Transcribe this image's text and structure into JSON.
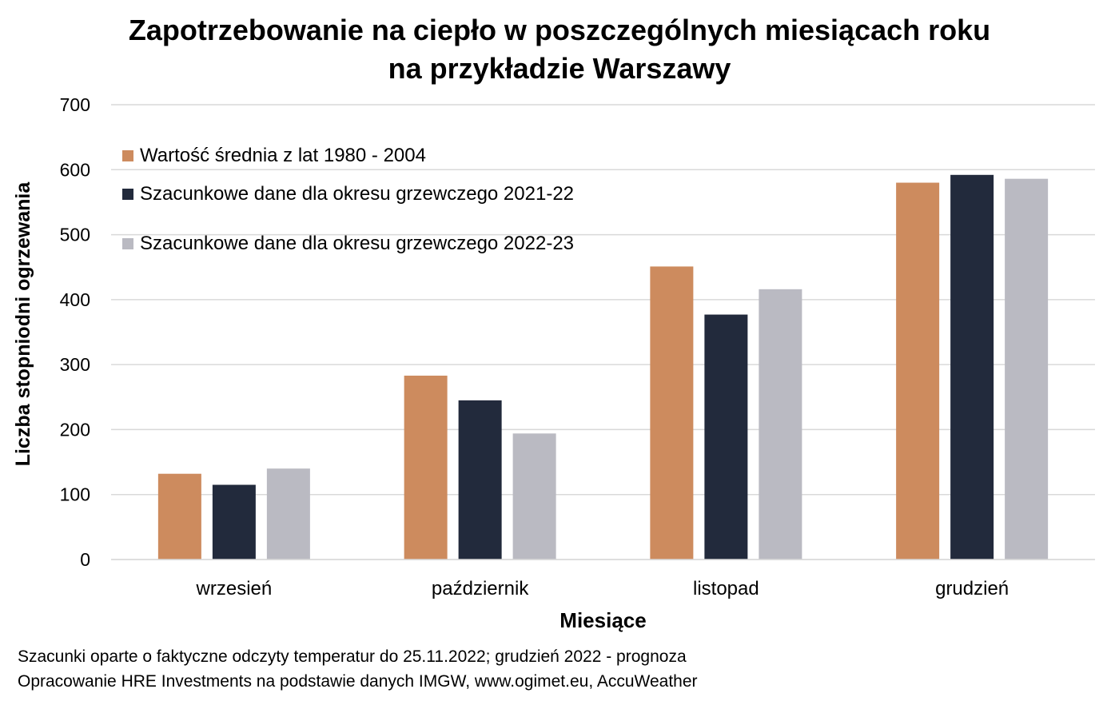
{
  "chart_data": {
    "type": "bar",
    "title_lines": [
      "Zapotrzebowanie na ciepło w poszczególnych miesiącach roku",
      "na przykładzie Warszawy"
    ],
    "xlabel": "Miesiące",
    "ylabel": "Liczba stopniodni ogrzewania",
    "ylim": [
      0,
      700
    ],
    "yticks": [
      0,
      100,
      200,
      300,
      400,
      500,
      600,
      700
    ],
    "grid": true,
    "legend_position": "top-left",
    "categories": [
      "wrzesień",
      "październik",
      "listopad",
      "grudzień"
    ],
    "series": [
      {
        "name": "Wartość średnia z lat 1980 - 2004",
        "color": "#CD8B5E",
        "values": [
          132,
          283,
          451,
          580
        ]
      },
      {
        "name": "Szacunkowe dane dla okresu grzewczego 2021-22",
        "color": "#222A3C",
        "values": [
          115,
          245,
          377,
          592
        ]
      },
      {
        "name": "Szacunkowe dane dla okresu grzewczego 2022-23",
        "color": "#BABAC2",
        "values": [
          140,
          194,
          416,
          586
        ]
      }
    ]
  },
  "footnotes": [
    "Szacunki oparte o faktyczne odczyty temperatur do 25.11.2022; grudzień 2022 - prognoza",
    "Opracowanie HRE Investments na podstawie danych IMGW, www.ogimet.eu, AccuWeather"
  ]
}
